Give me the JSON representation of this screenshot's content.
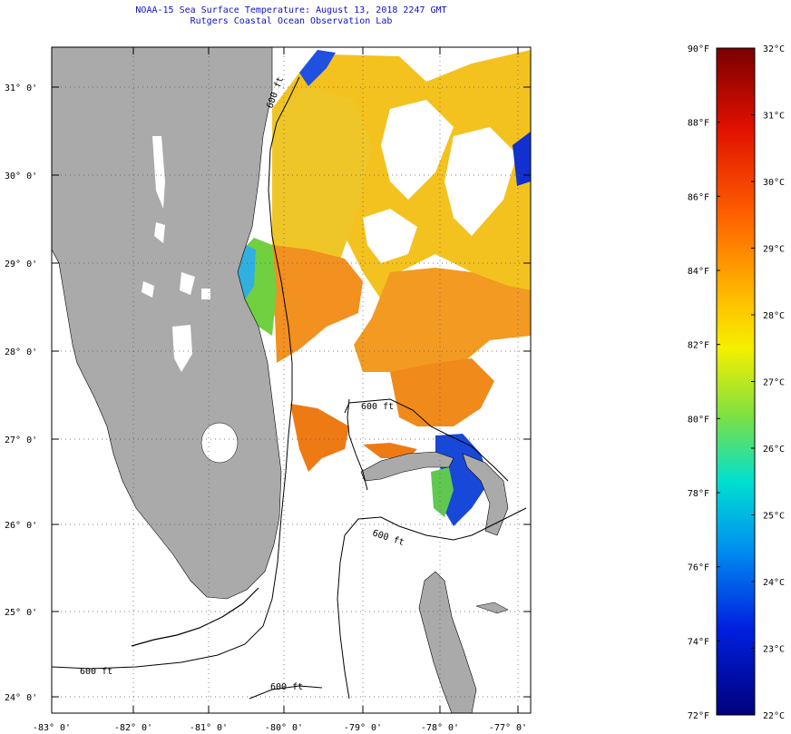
{
  "title": {
    "line1": "NOAA-15 Sea Surface Temperature:  August 13, 2018 2247 GMT",
    "line2": "Rutgers Coastal Ocean Observation Lab"
  },
  "map": {
    "lat_labels": [
      "31° 0'",
      "30° 0'",
      "29° 0'",
      "28° 0'",
      "27° 0'",
      "26° 0'",
      "25° 0'",
      "24° 0'"
    ],
    "lon_labels": [
      "-83° 0'",
      "-82° 0'",
      "-81° 0'",
      "-80° 0'",
      "-79° 0'",
      "-78° 0'",
      "-77° 0'"
    ],
    "contour_label": "600 ft",
    "colors": {
      "land": "#aaaaaa",
      "ocean": "#ffffff",
      "warm": "#f08010",
      "yellow": "#f0c820",
      "cool": "#1040e0"
    }
  },
  "colorbar": {
    "fahrenheit_labels": [
      "90°F",
      "88°F",
      "86°F",
      "84°F",
      "82°F",
      "80°F",
      "78°F",
      "76°F",
      "74°F",
      "72°F"
    ],
    "celsius_labels": [
      "32°C",
      "31°C",
      "30°C",
      "29°C",
      "28°C",
      "27°C",
      "26°C",
      "25°C",
      "24°C",
      "23°C",
      "22°C"
    ],
    "min_f": 72,
    "max_f": 90,
    "min_c": 22,
    "max_c": 32
  }
}
